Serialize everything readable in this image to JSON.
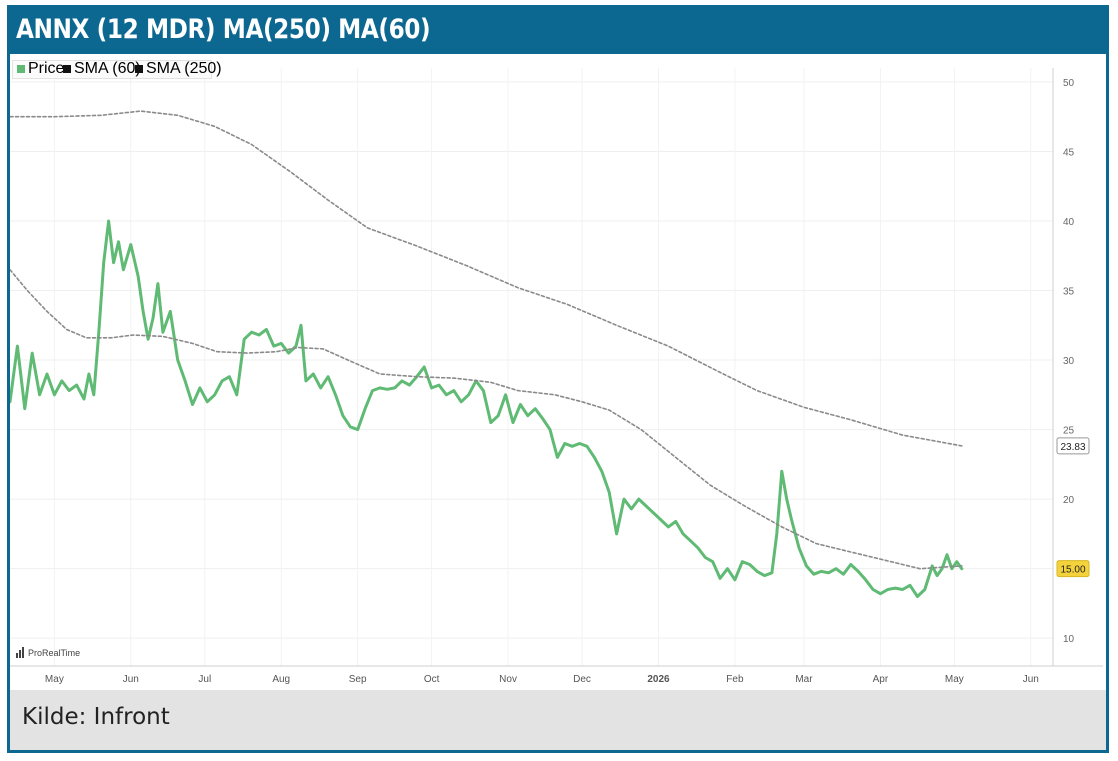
{
  "header": {
    "title": "ANNX (12 MDR) MA(250) MA(60)"
  },
  "footer": {
    "source": "Kilde: Infront"
  },
  "watermark": {
    "brand": "ProRealTime"
  },
  "legend": [
    {
      "label": "Price",
      "color": "#5fba74"
    },
    {
      "label": "SMA (60)",
      "color": "#111111"
    },
    {
      "label": "SMA (250)",
      "color": "#111111"
    }
  ],
  "colors": {
    "frame": "#0d6891",
    "price": "#5fba74",
    "sma": "#8a8a8a",
    "last_value_badge": "#f3d23b"
  },
  "chart_data": {
    "type": "line",
    "title": "ANNX (12 MDR) MA(250) MA(60)",
    "xlabel": "",
    "ylabel": "",
    "ylim": [
      8,
      51
    ],
    "y_ticks": [
      10,
      15,
      20,
      25,
      30,
      35,
      40,
      45,
      50
    ],
    "y_tick_labels": [
      "10",
      "15",
      "20",
      "25",
      "30",
      "35",
      "40",
      "45",
      "50"
    ],
    "x_tick_labels": [
      "May",
      "Jun",
      "Jul",
      "Aug",
      "Sep",
      "Oct",
      "Nov",
      "Dec",
      "2026",
      "Feb",
      "Mar",
      "Apr",
      "May",
      "Jun"
    ],
    "x_tick_dates": [
      "2025-05-01",
      "2025-06-01",
      "2025-07-01",
      "2025-08-01",
      "2025-09-01",
      "2025-10-01",
      "2025-11-01",
      "2025-12-01",
      "2026-01-01",
      "2026-02-01",
      "2026-03-01",
      "2026-04-01",
      "2026-05-01",
      "2026-06-01"
    ],
    "x_range": [
      "2025-04-13",
      "2026-06-10"
    ],
    "grid": true,
    "legend_position": "top-left",
    "last_values": [
      {
        "series": "SMA (250)",
        "label": "23.83"
      },
      {
        "series": "Price",
        "label": "15.00"
      }
    ],
    "series": [
      {
        "name": "Price",
        "style": "solid",
        "points": [
          [
            "2025-04-13",
            27.0
          ],
          [
            "2025-04-16",
            31.0
          ],
          [
            "2025-04-19",
            26.5
          ],
          [
            "2025-04-22",
            30.5
          ],
          [
            "2025-04-25",
            27.5
          ],
          [
            "2025-04-28",
            29.0
          ],
          [
            "2025-05-01",
            27.5
          ],
          [
            "2025-05-04",
            28.5
          ],
          [
            "2025-05-07",
            27.8
          ],
          [
            "2025-05-10",
            28.2
          ],
          [
            "2025-05-13",
            27.2
          ],
          [
            "2025-05-15",
            29.0
          ],
          [
            "2025-05-17",
            27.5
          ],
          [
            "2025-05-19",
            32.0
          ],
          [
            "2025-05-21",
            37.0
          ],
          [
            "2025-05-23",
            40.0
          ],
          [
            "2025-05-25",
            37.0
          ],
          [
            "2025-05-27",
            38.5
          ],
          [
            "2025-05-29",
            36.5
          ],
          [
            "2025-06-01",
            38.3
          ],
          [
            "2025-06-04",
            36.0
          ],
          [
            "2025-06-06",
            33.5
          ],
          [
            "2025-06-08",
            31.5
          ],
          [
            "2025-06-10",
            33.0
          ],
          [
            "2025-06-12",
            35.5
          ],
          [
            "2025-06-14",
            32.0
          ],
          [
            "2025-06-17",
            33.5
          ],
          [
            "2025-06-20",
            30.0
          ],
          [
            "2025-06-23",
            28.5
          ],
          [
            "2025-06-26",
            26.8
          ],
          [
            "2025-06-29",
            28.0
          ],
          [
            "2025-07-02",
            27.0
          ],
          [
            "2025-07-05",
            27.5
          ],
          [
            "2025-07-08",
            28.5
          ],
          [
            "2025-07-11",
            28.8
          ],
          [
            "2025-07-14",
            27.5
          ],
          [
            "2025-07-17",
            31.5
          ],
          [
            "2025-07-20",
            32.0
          ],
          [
            "2025-07-23",
            31.8
          ],
          [
            "2025-07-26",
            32.2
          ],
          [
            "2025-07-29",
            31.0
          ],
          [
            "2025-08-01",
            31.2
          ],
          [
            "2025-08-04",
            30.5
          ],
          [
            "2025-08-07",
            31.0
          ],
          [
            "2025-08-09",
            32.5
          ],
          [
            "2025-08-11",
            28.5
          ],
          [
            "2025-08-14",
            29.0
          ],
          [
            "2025-08-17",
            28.0
          ],
          [
            "2025-08-20",
            28.8
          ],
          [
            "2025-08-23",
            27.5
          ],
          [
            "2025-08-26",
            26.0
          ],
          [
            "2025-08-29",
            25.2
          ],
          [
            "2025-09-01",
            25.0
          ],
          [
            "2025-09-04",
            26.5
          ],
          [
            "2025-09-07",
            27.8
          ],
          [
            "2025-09-10",
            28.0
          ],
          [
            "2025-09-13",
            27.9
          ],
          [
            "2025-09-16",
            28.0
          ],
          [
            "2025-09-19",
            28.5
          ],
          [
            "2025-09-22",
            28.2
          ],
          [
            "2025-09-25",
            28.8
          ],
          [
            "2025-09-28",
            29.5
          ],
          [
            "2025-10-01",
            28.0
          ],
          [
            "2025-10-04",
            28.2
          ],
          [
            "2025-10-07",
            27.5
          ],
          [
            "2025-10-10",
            27.8
          ],
          [
            "2025-10-13",
            27.0
          ],
          [
            "2025-10-16",
            27.5
          ],
          [
            "2025-10-19",
            28.5
          ],
          [
            "2025-10-22",
            27.8
          ],
          [
            "2025-10-25",
            25.5
          ],
          [
            "2025-10-28",
            26.0
          ],
          [
            "2025-10-31",
            27.5
          ],
          [
            "2025-11-03",
            25.5
          ],
          [
            "2025-11-06",
            26.8
          ],
          [
            "2025-11-09",
            26.0
          ],
          [
            "2025-11-12",
            26.5
          ],
          [
            "2025-11-15",
            25.8
          ],
          [
            "2025-11-18",
            25.0
          ],
          [
            "2025-11-21",
            23.0
          ],
          [
            "2025-11-24",
            24.0
          ],
          [
            "2025-11-27",
            23.8
          ],
          [
            "2025-11-30",
            24.0
          ],
          [
            "2025-12-03",
            23.8
          ],
          [
            "2025-12-06",
            23.0
          ],
          [
            "2025-12-09",
            22.0
          ],
          [
            "2025-12-12",
            20.5
          ],
          [
            "2025-12-15",
            17.5
          ],
          [
            "2025-12-18",
            20.0
          ],
          [
            "2025-12-21",
            19.3
          ],
          [
            "2025-12-24",
            20.0
          ],
          [
            "2025-12-27",
            19.5
          ],
          [
            "2025-12-30",
            19.0
          ],
          [
            "2026-01-02",
            18.5
          ],
          [
            "2026-01-05",
            18.0
          ],
          [
            "2026-01-08",
            18.4
          ],
          [
            "2026-01-11",
            17.5
          ],
          [
            "2026-01-14",
            17.0
          ],
          [
            "2026-01-17",
            16.5
          ],
          [
            "2026-01-20",
            15.8
          ],
          [
            "2026-01-23",
            15.5
          ],
          [
            "2026-01-26",
            14.3
          ],
          [
            "2026-01-29",
            15.0
          ],
          [
            "2026-02-01",
            14.2
          ],
          [
            "2026-02-04",
            15.5
          ],
          [
            "2026-02-07",
            15.3
          ],
          [
            "2026-02-10",
            14.8
          ],
          [
            "2026-02-13",
            14.5
          ],
          [
            "2026-02-16",
            14.7
          ],
          [
            "2026-02-18",
            17.5
          ],
          [
            "2026-02-20",
            22.0
          ],
          [
            "2026-02-22",
            20.0
          ],
          [
            "2026-02-24",
            18.5
          ],
          [
            "2026-02-27",
            16.5
          ],
          [
            "2026-03-02",
            15.2
          ],
          [
            "2026-03-05",
            14.6
          ],
          [
            "2026-03-08",
            14.8
          ],
          [
            "2026-03-11",
            14.7
          ],
          [
            "2026-03-14",
            15.0
          ],
          [
            "2026-03-17",
            14.6
          ],
          [
            "2026-03-20",
            15.3
          ],
          [
            "2026-03-23",
            14.8
          ],
          [
            "2026-03-26",
            14.2
          ],
          [
            "2026-03-29",
            13.5
          ],
          [
            "2026-04-01",
            13.2
          ],
          [
            "2026-04-04",
            13.5
          ],
          [
            "2026-04-07",
            13.6
          ],
          [
            "2026-04-10",
            13.5
          ],
          [
            "2026-04-13",
            13.8
          ],
          [
            "2026-04-16",
            13.0
          ],
          [
            "2026-04-19",
            13.5
          ],
          [
            "2026-04-22",
            15.2
          ],
          [
            "2026-04-24",
            14.5
          ],
          [
            "2026-04-26",
            15.0
          ],
          [
            "2026-04-28",
            16.0
          ],
          [
            "2026-04-30",
            15.0
          ],
          [
            "2026-05-02",
            15.5
          ],
          [
            "2026-05-04",
            15.0
          ]
        ]
      },
      {
        "name": "SMA (60)",
        "style": "dotted",
        "points": [
          [
            "2025-04-13",
            36.5
          ],
          [
            "2025-04-20",
            35.0
          ],
          [
            "2025-04-28",
            33.5
          ],
          [
            "2025-05-06",
            32.2
          ],
          [
            "2025-05-14",
            31.6
          ],
          [
            "2025-05-24",
            31.6
          ],
          [
            "2025-06-02",
            31.8
          ],
          [
            "2025-06-14",
            31.7
          ],
          [
            "2025-06-26",
            31.2
          ],
          [
            "2025-07-06",
            30.6
          ],
          [
            "2025-07-18",
            30.5
          ],
          [
            "2025-07-30",
            30.6
          ],
          [
            "2025-08-08",
            30.9
          ],
          [
            "2025-08-18",
            30.8
          ],
          [
            "2025-08-28",
            30.0
          ],
          [
            "2025-09-10",
            29.0
          ],
          [
            "2025-09-25",
            28.8
          ],
          [
            "2025-10-10",
            28.7
          ],
          [
            "2025-10-25",
            28.4
          ],
          [
            "2025-11-05",
            27.8
          ],
          [
            "2025-11-20",
            27.5
          ],
          [
            "2025-12-01",
            27.0
          ],
          [
            "2025-12-12",
            26.4
          ],
          [
            "2025-12-25",
            25.0
          ],
          [
            "2026-01-08",
            23.0
          ],
          [
            "2026-01-22",
            21.0
          ],
          [
            "2026-02-05",
            19.5
          ],
          [
            "2026-02-20",
            18.0
          ],
          [
            "2026-03-06",
            16.8
          ],
          [
            "2026-03-20",
            16.2
          ],
          [
            "2026-04-03",
            15.6
          ],
          [
            "2026-04-17",
            15.0
          ],
          [
            "2026-05-04",
            15.2
          ]
        ]
      },
      {
        "name": "SMA (250)",
        "style": "dotted",
        "points": [
          [
            "2025-04-13",
            47.5
          ],
          [
            "2025-05-01",
            47.5
          ],
          [
            "2025-05-20",
            47.6
          ],
          [
            "2025-06-05",
            47.9
          ],
          [
            "2025-06-20",
            47.6
          ],
          [
            "2025-07-05",
            46.8
          ],
          [
            "2025-07-20",
            45.5
          ],
          [
            "2025-08-05",
            43.5
          ],
          [
            "2025-08-20",
            41.5
          ],
          [
            "2025-09-05",
            39.5
          ],
          [
            "2025-09-25",
            38.2
          ],
          [
            "2025-10-15",
            36.8
          ],
          [
            "2025-11-05",
            35.2
          ],
          [
            "2025-11-25",
            34.0
          ],
          [
            "2025-12-15",
            32.5
          ],
          [
            "2026-01-05",
            31.0
          ],
          [
            "2026-01-25",
            29.2
          ],
          [
            "2026-02-10",
            27.8
          ],
          [
            "2026-03-01",
            26.6
          ],
          [
            "2026-03-20",
            25.7
          ],
          [
            "2026-04-10",
            24.6
          ],
          [
            "2026-05-04",
            23.83
          ]
        ]
      }
    ]
  }
}
